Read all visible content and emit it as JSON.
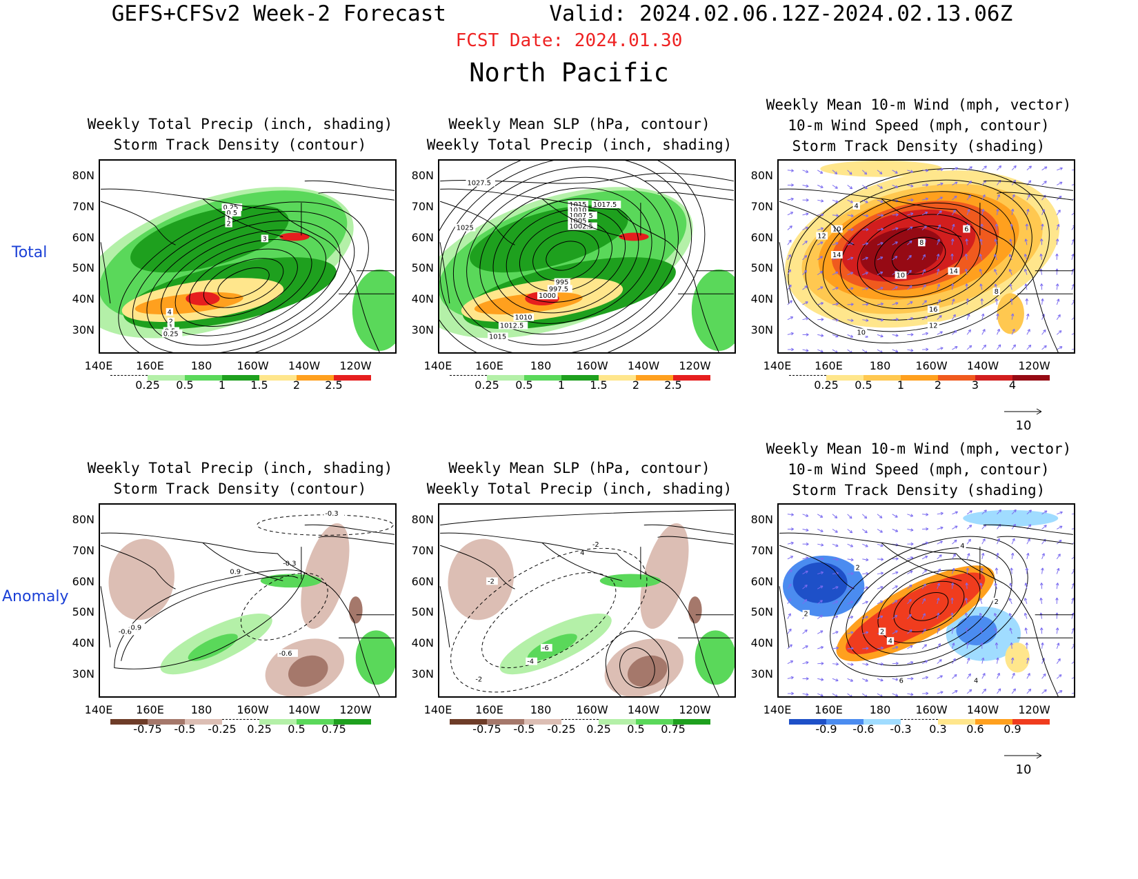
{
  "header": {
    "title": "GEFS+CFSv2 Week-2 Forecast",
    "valid": "Valid: 2024.02.06.12Z-2024.02.13.06Z",
    "fcst_date": "FCST Date: 2024.01.30",
    "region": "North Pacific"
  },
  "rows": {
    "total": "Total",
    "anomaly": "Anomaly"
  },
  "panels": {
    "t1": {
      "title": "Weekly Total Precip (inch, shading)\nStorm Track Density (contour)"
    },
    "t2": {
      "title": "Weekly Mean SLP (hPa, contour)\nWeekly Total Precip (inch, shading)"
    },
    "t3": {
      "title": "Weekly Mean 10-m Wind (mph, vector)\n10-m Wind Speed (mph, contour)\nStorm Track Density (shading)"
    },
    "a1": {
      "title": "Weekly Total Precip (inch, shading)\nStorm Track Density (contour)"
    },
    "a2": {
      "title": "Weekly Mean SLP (hPa, contour)\nWeekly Total Precip (inch, shading)"
    },
    "a3": {
      "title": "Weekly Mean 10-m Wind (mph, vector)\n10-m Wind Speed (mph, contour)\nStorm Track Density (shading)"
    }
  },
  "axes": {
    "lat_labels": [
      "80N",
      "70N",
      "60N",
      "50N",
      "40N",
      "30N"
    ],
    "lon_labels": [
      "140E",
      "160E",
      "180",
      "160W",
      "140W",
      "120W"
    ]
  },
  "colorbars": {
    "precip_total": {
      "labels": [
        "0.25",
        "0.5",
        "1",
        "1.5",
        "2",
        "2.5"
      ],
      "colors": [
        "#ffffff",
        "#b4f0a8",
        "#5ad85a",
        "#1ea01e",
        "#ffe68c",
        "#ffa01e",
        "#e61e1e"
      ]
    },
    "storm_total": {
      "labels": [
        "0.25",
        "0.5",
        "1",
        "2",
        "3",
        "4"
      ],
      "colors": [
        "#ffffff",
        "#ffe68c",
        "#ffc850",
        "#ffa01e",
        "#f05a1e",
        "#d21e1e",
        "#960a14"
      ]
    },
    "precip_anom": {
      "labels": [
        "-0.75",
        "-0.5",
        "-0.25",
        "0.25",
        "0.5",
        "0.75"
      ],
      "colors": [
        "#6e3c28",
        "#a5786b",
        "#dcbeb4",
        "#ffffff",
        "#b4f0a8",
        "#5ad85a",
        "#1ea01e"
      ]
    },
    "storm_anom": {
      "labels": [
        "-0.9",
        "-0.6",
        "-0.3",
        "0.3",
        "0.6",
        "0.9"
      ],
      "colors": [
        "#1e50c8",
        "#4b8cf0",
        "#a0dcff",
        "#ffffff",
        "#ffe68c",
        "#ffa01e",
        "#f03c1e"
      ]
    }
  },
  "contour_labels": {
    "t1": [
      "0.25",
      "0.5",
      "1",
      "2",
      "3",
      "4",
      "2",
      "1",
      "0.5",
      "0.25"
    ],
    "t2": [
      "1027.5",
      "1015",
      "1017.5",
      "1010",
      "1007.5",
      "1005",
      "1002.5",
      "1025",
      "995",
      "997.5",
      "1000",
      "1010",
      "1012.5",
      "1015"
    ],
    "t3": [
      "10",
      "12",
      "14",
      "8",
      "6",
      "10",
      "14",
      "8",
      "16",
      "12",
      "10",
      "4"
    ],
    "a1": [
      "0.9",
      "-0.3",
      "-0.3",
      "-0.6",
      "0.9",
      "-0.6"
    ],
    "a2": [
      "-2",
      "4",
      "-6",
      "-4",
      "-2",
      "-2"
    ],
    "a3": [
      "2",
      "4",
      "2",
      "4",
      "2",
      "6",
      "4",
      "2"
    ]
  },
  "reference_vector": {
    "value": "10"
  },
  "colors": {
    "fcst_date": "#ee2222",
    "row_label": "#1a3fd6",
    "wind_vector": "#7b6cf0"
  }
}
